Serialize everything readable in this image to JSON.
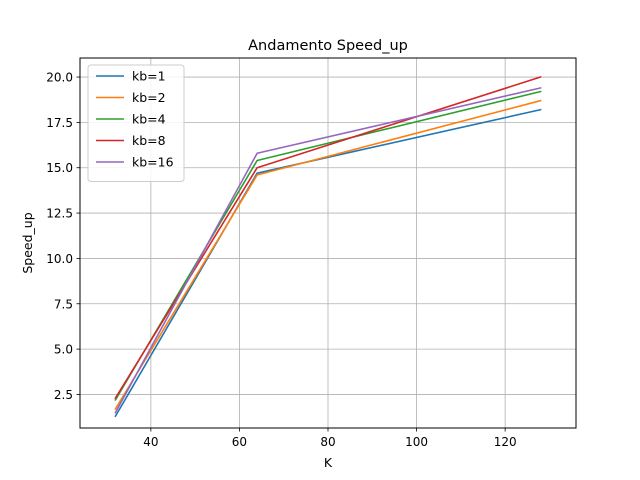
{
  "chart_data": {
    "type": "line",
    "title": "Andamento Speed_up",
    "xlabel": "K",
    "ylabel": "Speed_up",
    "x": [
      32,
      64,
      128
    ],
    "xlim": [
      24,
      136
    ],
    "ylim": [
      0.65,
      21.05
    ],
    "xticks": [
      40,
      60,
      80,
      100,
      120
    ],
    "yticks": [
      2.5,
      5.0,
      7.5,
      10.0,
      12.5,
      15.0,
      17.5,
      20.0
    ],
    "grid": true,
    "legend_position": "top-left",
    "series": [
      {
        "name": "kb=1",
        "color": "#1f77b4",
        "values": [
          1.3,
          14.7,
          18.2
        ]
      },
      {
        "name": "kb=2",
        "color": "#ff7f0e",
        "values": [
          1.7,
          14.6,
          18.7
        ]
      },
      {
        "name": "kb=4",
        "color": "#2ca02c",
        "values": [
          2.2,
          15.4,
          19.2
        ]
      },
      {
        "name": "kb=8",
        "color": "#d62728",
        "values": [
          2.3,
          15.0,
          20.0
        ]
      },
      {
        "name": "kb=16",
        "color": "#9467bd",
        "values": [
          1.5,
          15.8,
          19.4
        ]
      }
    ]
  }
}
